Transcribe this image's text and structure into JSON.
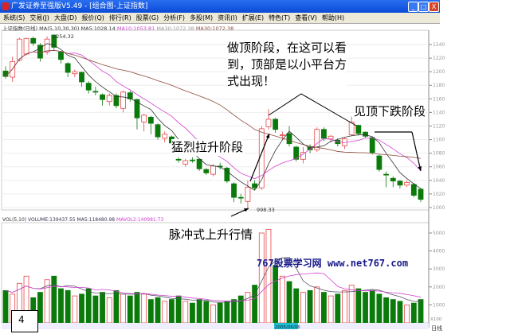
{
  "window": {
    "title": "广发证券至强版V5.49 - [组合图-上证指数]",
    "controls": [
      "_",
      "□",
      "X"
    ]
  },
  "menu": [
    "系统(S)",
    "交易(J)",
    "大盘(D)",
    "报价(Q)",
    "排行(R)",
    "股票(G)",
    "分析(F)",
    "多股(M)",
    "资讯(I)",
    "扩展(E)",
    "特色(T)",
    "查看(V)",
    "帮助(H)"
  ],
  "info": {
    "name": "上证指数(日线)",
    "params": "MA(5,10,30,30)",
    "ma5": "MA5:1028.14",
    "ma10": "MA10:1053.81",
    "ma30a": "MA30:1072.38",
    "ma30b": "MA30:1072.38"
  },
  "volinfo": {
    "name": "VOL(5,10)",
    "volume": "VOLUME:139437.55",
    "ma5": "MA5:118480.98",
    "mavol2": "MAVOL2:140981.73"
  },
  "annotations": {
    "top": "做顶阶段，在这可以看到，顶部是以小平台方式出现！",
    "fall": "见顶下跌阶段",
    "rise": "猛烈拉升阶段",
    "pulse": "脉冲式上升行情"
  },
  "watermark": "767股票学习网 www.net767.com",
  "page_number": "4",
  "bottom_label": "日线",
  "volume_unit": "X100",
  "date_marker": "2005/06/06",
  "colors": {
    "up": "#e8464a",
    "down": "#0a7a0a",
    "ma5": "#333333",
    "ma10": "#d040d0",
    "ma30": "#8b4a3a",
    "titlebar": "#0a4ad8"
  },
  "chart_data": [
    {
      "type": "candlestick",
      "title": "上证指数(日线)",
      "ylim": [
        990,
        1260
      ],
      "yticks": [
        1000,
        1020,
        1040,
        1060,
        1080,
        1100,
        1120,
        1140,
        1160,
        1180,
        1200,
        1220,
        1240
      ],
      "annotations": {
        "high": "1254.32",
        "low": "998.33"
      },
      "candles": [
        [
          1201,
          1193,
          1208,
          1190
        ],
        [
          1192,
          1215,
          1222,
          1185
        ],
        [
          1217,
          1248,
          1250,
          1215
        ],
        [
          1226,
          1249,
          1250,
          1224
        ],
        [
          1249,
          1242,
          1252,
          1238
        ],
        [
          1239,
          1220,
          1242,
          1215
        ],
        [
          1229,
          1248,
          1252,
          1225
        ],
        [
          1254,
          1236,
          1254.32,
          1232
        ],
        [
          1229,
          1218,
          1230,
          1212
        ],
        [
          1212,
          1199,
          1214,
          1192
        ],
        [
          1197,
          1200,
          1203,
          1192
        ],
        [
          1199,
          1185,
          1200,
          1178
        ],
        [
          1183,
          1173,
          1186,
          1168
        ],
        [
          1171,
          1170,
          1178,
          1165
        ],
        [
          1166,
          1159,
          1168,
          1150
        ],
        [
          1156,
          1165,
          1168,
          1150
        ],
        [
          1165,
          1150,
          1168,
          1146
        ],
        [
          1146,
          1170,
          1172,
          1140
        ],
        [
          1169,
          1160,
          1172,
          1156
        ],
        [
          1159,
          1132,
          1160,
          1115
        ],
        [
          1126,
          1136,
          1138,
          1112
        ],
        [
          1133,
          1124,
          1135,
          1108
        ],
        [
          1122,
          1104,
          1124,
          1100
        ],
        [
          1102,
          1108,
          1112,
          1096
        ],
        [
          1104,
          1095,
          1106,
          1090
        ],
        [
          1071,
          1070,
          1074,
          1066
        ],
        [
          1064,
          1069,
          1072,
          1060
        ],
        [
          1070,
          1069,
          1074,
          1066
        ],
        [
          1071,
          1057,
          1072,
          1054
        ],
        [
          1056,
          1051,
          1058,
          1048
        ],
        [
          1049,
          1061,
          1064,
          1046
        ],
        [
          1061,
          1060,
          1066,
          1056
        ],
        [
          1058,
          1039,
          1060,
          1036
        ],
        [
          1035,
          1015,
          1037,
          1008
        ],
        [
          1015,
          1014,
          1020,
          1006
        ],
        [
          1009,
          1030,
          1040,
          998.33
        ],
        [
          1035,
          1029,
          1040,
          1026
        ],
        [
          1029,
          1116,
          1120,
          1026
        ],
        [
          1119,
          1130,
          1145,
          1115
        ],
        [
          1130,
          1115,
          1132,
          1110
        ],
        [
          1106,
          1107,
          1112,
          1100
        ],
        [
          1109,
          1094,
          1120,
          1090
        ],
        [
          1089,
          1071,
          1091,
          1068
        ],
        [
          1071,
          1081,
          1089,
          1065
        ],
        [
          1089,
          1085,
          1093,
          1080
        ],
        [
          1085,
          1115,
          1118,
          1082
        ],
        [
          1115,
          1102,
          1118,
          1098
        ],
        [
          1101,
          1105,
          1107,
          1096
        ],
        [
          1099,
          1094,
          1102,
          1090
        ],
        [
          1091,
          1101,
          1103,
          1086
        ],
        [
          1107,
          1126,
          1134,
          1105
        ],
        [
          1121,
          1109,
          1122,
          1106
        ],
        [
          1111,
          1105,
          1112,
          1103
        ],
        [
          1103,
          1081,
          1104,
          1078
        ],
        [
          1076,
          1056,
          1078,
          1053
        ],
        [
          1049,
          1048,
          1053,
          1030
        ],
        [
          1043,
          1039,
          1046,
          1030
        ],
        [
          1039,
          1033,
          1040,
          1028
        ],
        [
          1033,
          1037,
          1040,
          1030
        ],
        [
          1034,
          1018,
          1036,
          1015
        ],
        [
          1027,
          1012,
          1029,
          1008
        ]
      ],
      "candle_format": [
        "open",
        "close",
        "high",
        "low"
      ]
    },
    {
      "type": "bar",
      "title": "VOL(5,10)",
      "ylim": [
        0,
        5600
      ],
      "yticks": [
        1000,
        2000,
        3000,
        4000,
        5000
      ],
      "values": [
        1800,
        1600,
        2200,
        2600,
        1400,
        1700,
        2400,
        2600,
        1900,
        1800,
        1500,
        1600,
        1900,
        1500,
        1700,
        1400,
        1800,
        1600,
        1500,
        1700,
        1600,
        1300,
        1400,
        1200,
        1300,
        1500,
        1200,
        1100,
        1300,
        1200,
        1000,
        1100,
        1200,
        1300,
        1500,
        1700,
        2100,
        5000,
        5200,
        3200,
        2600,
        2300,
        1900,
        1700,
        1800,
        2000,
        1700,
        1500,
        1600,
        1800,
        2100,
        1900,
        1700,
        1800,
        1600,
        1400,
        1300,
        1200,
        1000,
        1100,
        1300
      ]
    }
  ]
}
